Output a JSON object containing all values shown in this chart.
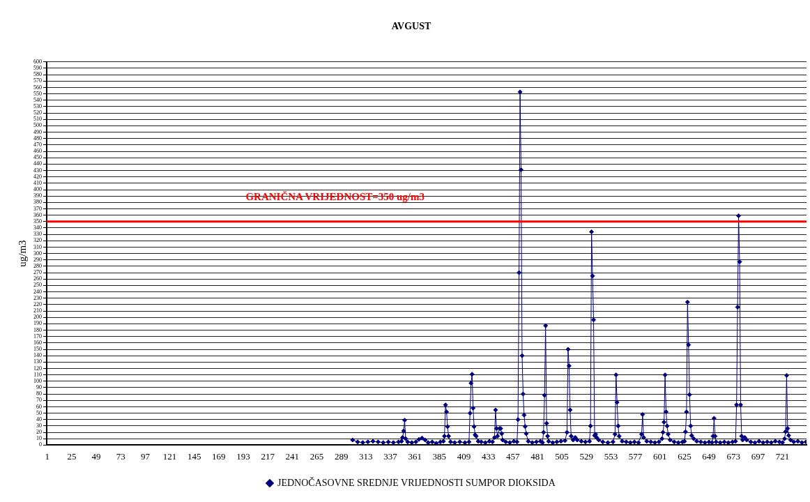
{
  "chart_data": {
    "type": "line",
    "title": "AVGUST",
    "ylabel": "ug/m3",
    "xlim": [
      0.5,
      744.5
    ],
    "xticks": [
      1,
      25,
      49,
      73,
      97,
      121,
      145,
      169,
      193,
      217,
      241,
      265,
      289,
      313,
      337,
      361,
      385,
      409,
      433,
      457,
      481,
      505,
      529,
      553,
      577,
      601,
      625,
      649,
      673,
      697,
      721
    ],
    "ylim": [
      0,
      600
    ],
    "yticks": [
      0,
      10,
      20,
      30,
      40,
      50,
      60,
      70,
      80,
      90,
      100,
      110,
      120,
      130,
      140,
      150,
      160,
      170,
      180,
      190,
      200,
      210,
      220,
      230,
      240,
      250,
      260,
      270,
      280,
      290,
      300,
      310,
      320,
      330,
      340,
      350,
      360,
      370,
      380,
      390,
      400,
      410,
      420,
      430,
      440,
      450,
      460,
      470,
      480,
      490,
      500,
      510,
      520,
      530,
      540,
      550,
      560,
      570,
      580,
      590,
      600
    ],
    "grid": "y",
    "legend": "bottom",
    "marker": "diamond",
    "line_style": "solid",
    "ref_lines": [
      {
        "axis": "y",
        "value": 350,
        "label": "GRANIČNA VRIJEDNOST=350 ug/m3",
        "color": "#ff0000"
      }
    ],
    "series": [
      {
        "name": "JEDNOČASOVNE SREDNJE VRIJEDNOSTI SUMPOR DIOKSIDA",
        "color": "#000080",
        "x": [
          300,
          305,
          310,
          315,
          320,
          325,
          330,
          335,
          340,
          345,
          348,
          349,
          350,
          351,
          352,
          354,
          358,
          362,
          365,
          368,
          371,
          374,
          378,
          382,
          386,
          389,
          390,
          391,
          392,
          393,
          394,
          396,
          400,
          405,
          410,
          414,
          415,
          416,
          417,
          418,
          419,
          420,
          421,
          423,
          426,
          430,
          434,
          437,
          439,
          440,
          441,
          442,
          444,
          445,
          446,
          447,
          450,
          454,
          458,
          461,
          462,
          463,
          464,
          465,
          466,
          467,
          468,
          469,
          470,
          472,
          476,
          480,
          484,
          486,
          487,
          488,
          489,
          490,
          491,
          492,
          496,
          500,
          504,
          508,
          510,
          511,
          512,
          513,
          514,
          516,
          518,
          520,
          524,
          528,
          532,
          533,
          534,
          535,
          536,
          537,
          538,
          539,
          541,
          545,
          550,
          555,
          557,
          558,
          559,
          560,
          561,
          564,
          568,
          572,
          576,
          580,
          583,
          584,
          585,
          588,
          592,
          596,
          600,
          603,
          604,
          605,
          606,
          607,
          608,
          609,
          611,
          615,
          619,
          623,
          625,
          626,
          627,
          628,
          629,
          630,
          631,
          632,
          634,
          637,
          641,
          645,
          649,
          652,
          653,
          654,
          655,
          656,
          660,
          664,
          668,
          672,
          675,
          676,
          677,
          678,
          679,
          680,
          681,
          682,
          684,
          686,
          690,
          694,
          698,
          702,
          706,
          710,
          714,
          718,
          721,
          723,
          724,
          725,
          726,
          727,
          729,
          732,
          736,
          740,
          744
        ],
        "values": [
          8,
          5,
          4,
          5,
          6,
          5,
          4,
          5,
          4,
          5,
          6,
          12,
          22,
          39,
          10,
          5,
          4,
          5,
          9,
          11,
          8,
          4,
          5,
          3,
          5,
          6,
          14,
          63,
          52,
          29,
          14,
          5,
          4,
          5,
          4,
          5,
          50,
          97,
          111,
          58,
          29,
          16,
          14,
          6,
          5,
          4,
          6,
          5,
          12,
          55,
          26,
          14,
          26,
          26,
          18,
          8,
          5,
          4,
          6,
          5,
          40,
          270,
          553,
          431,
          140,
          80,
          47,
          29,
          18,
          6,
          4,
          5,
          6,
          4,
          20,
          78,
          187,
          34,
          14,
          6,
          4,
          5,
          6,
          7,
          20,
          150,
          124,
          55,
          14,
          8,
          12,
          8,
          6,
          5,
          6,
          30,
          334,
          265,
          196,
          15,
          17,
          12,
          8,
          5,
          4,
          5,
          17,
          110,
          67,
          30,
          14,
          6,
          5,
          4,
          5,
          4,
          17,
          48,
          12,
          6,
          5,
          4,
          5,
          10,
          20,
          36,
          110,
          52,
          30,
          17,
          8,
          5,
          4,
          5,
          6,
          21,
          52,
          224,
          157,
          79,
          30,
          15,
          10,
          6,
          5,
          4,
          5,
          4,
          14,
          42,
          14,
          5,
          4,
          5,
          4,
          5,
          6,
          63,
          216,
          359,
          287,
          63,
          14,
          8,
          12,
          8,
          5,
          4,
          6,
          4,
          5,
          4,
          6,
          5,
          4,
          10,
          21,
          109,
          26,
          15,
          8,
          5,
          6,
          4,
          5
        ]
      }
    ]
  }
}
